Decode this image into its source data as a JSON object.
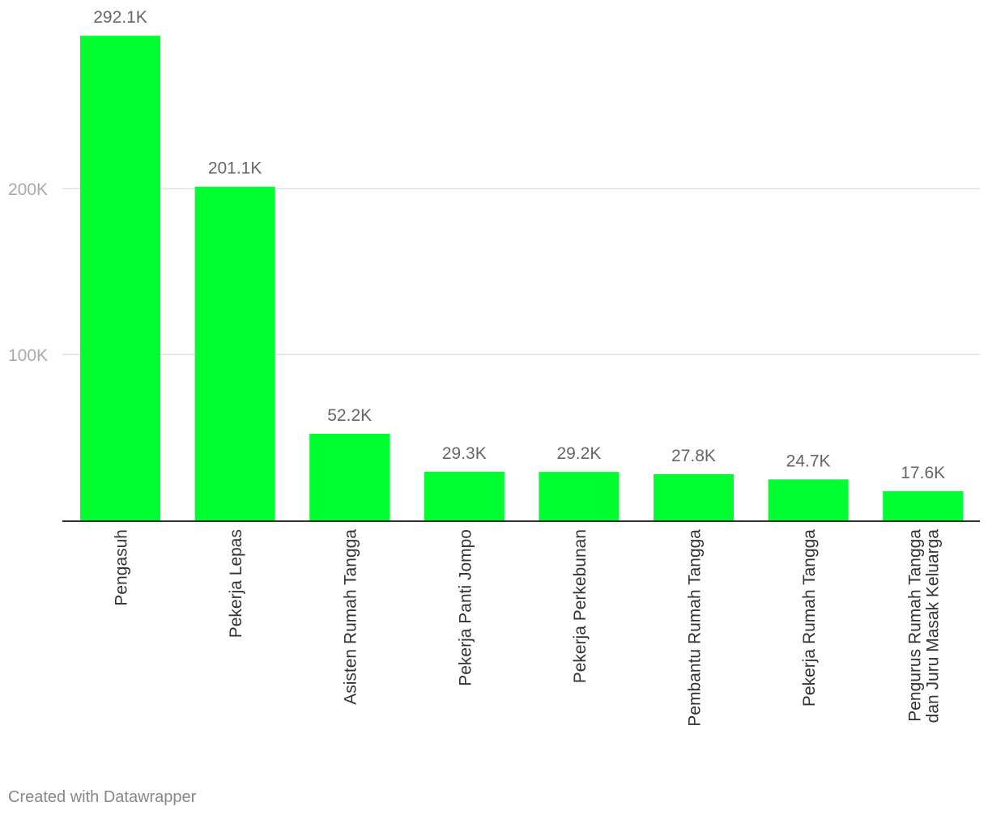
{
  "chart_data": {
    "type": "bar",
    "categories": [
      [
        "Pengasuh"
      ],
      [
        "Pekerja Lepas"
      ],
      [
        "Asisten Rumah Tangga"
      ],
      [
        "Pekerja Panti Jompo"
      ],
      [
        "Pekerja Perkebunan"
      ],
      [
        "Pembantu Rumah Tangga"
      ],
      [
        "Pekerja Rumah Tangga"
      ],
      [
        "Pengurus Rumah Tangga",
        "dan Juru Masak Keluarga"
      ]
    ],
    "values": [
      292.1,
      201.1,
      52.2,
      29.3,
      29.2,
      27.8,
      24.7,
      17.6
    ],
    "value_labels": [
      "292.1K",
      "201.1K",
      "52.2K",
      "29.3K",
      "29.2K",
      "27.8K",
      "24.7K",
      "17.6K"
    ],
    "unit": "thousands",
    "y_ticks": [
      {
        "value": 100,
        "label": "100K"
      },
      {
        "value": 200,
        "label": "200K"
      }
    ],
    "ylim": [
      0,
      300
    ],
    "grid": true,
    "bar_color": "#00ff30",
    "grid_color": "#e2e2e2",
    "axis_color": "#333333",
    "title": "",
    "xlabel": "",
    "ylabel": ""
  },
  "footer": {
    "credit": "Created with Datawrapper"
  }
}
